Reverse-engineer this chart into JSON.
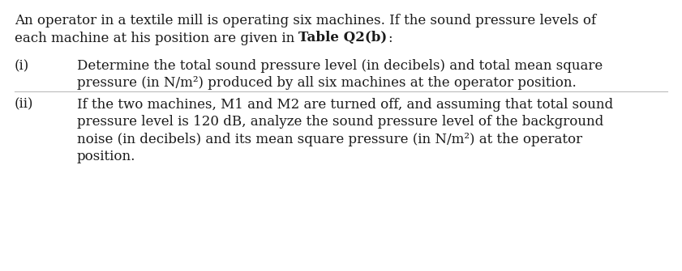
{
  "bg_color": "#ffffff",
  "text_color": "#1a1a1a",
  "line_color": "#bbbbbb",
  "intro_line1": "An operator in a textile mill is operating six machines. If the sound pressure levels of",
  "intro_line2_normal": "each machine at his position are given in ",
  "intro_line2_bold": "Table Q2(b)",
  "intro_line2_colon": ":",
  "part_i_label": "(i)",
  "part_i_line1": "Determine the total sound pressure level (in decibels) and total mean square",
  "part_i_line2": "pressure (in N/m²) produced by all six machines at the operator position.",
  "part_ii_label": "(ii)",
  "part_ii_line1": "If the two machines, M1 and M2 are turned off, and assuming that total sound",
  "part_ii_line2": "pressure level is 120 dB, analyze the sound pressure level of the background",
  "part_ii_line3": "noise (in decibels) and its mean square pressure (in N/m²) at the operator",
  "part_ii_line4": "position.",
  "fontsize": 12.0,
  "font_family": "DejaVu Serif"
}
